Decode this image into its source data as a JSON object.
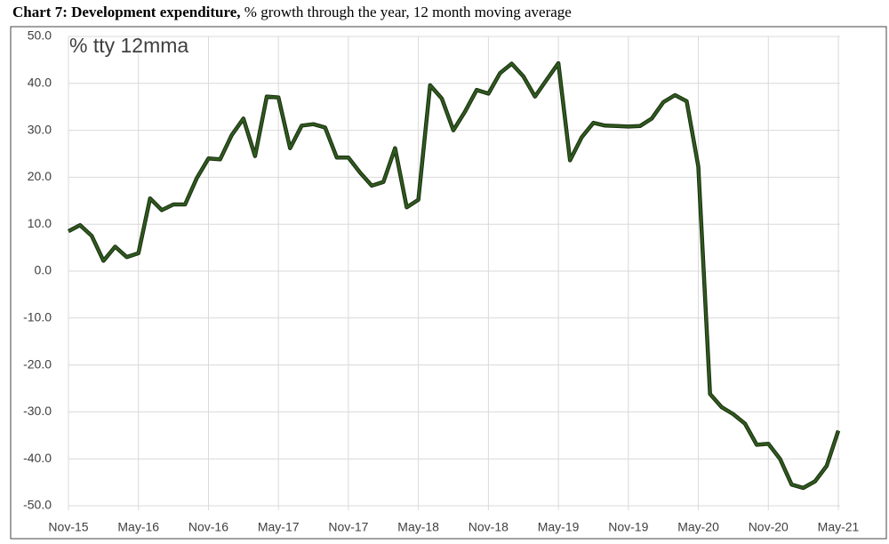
{
  "chart_data": {
    "type": "line",
    "title": "Chart 7: Development expenditure,",
    "subtitle": "% growth through the year, 12 month moving average",
    "annotation": "% tty 12mma",
    "categories": [
      "Nov-15",
      null,
      null,
      null,
      null,
      null,
      "May-16",
      null,
      null,
      null,
      null,
      null,
      "Nov-16",
      null,
      null,
      null,
      null,
      null,
      "May-17",
      null,
      null,
      null,
      null,
      null,
      "Nov-17",
      null,
      null,
      null,
      null,
      null,
      "May-18",
      null,
      null,
      null,
      null,
      null,
      "Nov-18",
      null,
      null,
      null,
      null,
      null,
      "May-19",
      null,
      null,
      null,
      null,
      null,
      "Nov-19",
      null,
      null,
      null,
      null,
      null,
      "May-20",
      null,
      null,
      null,
      null,
      null,
      "Nov-20",
      null,
      null,
      null,
      null,
      null,
      "May-21"
    ],
    "series": [
      {
        "name": "Development expenditure",
        "color": "#2f5a1e",
        "values": [
          8.5,
          9.8,
          7.5,
          2.2,
          5.2,
          3.0,
          3.8,
          15.5,
          13.0,
          14.2,
          14.2,
          19.8,
          24.0,
          23.8,
          29.0,
          32.5,
          24.5,
          37.2,
          37.0,
          26.2,
          31.0,
          31.3,
          30.6,
          24.2,
          24.2,
          21.0,
          18.2,
          19.0,
          26.2,
          13.6,
          15.2,
          39.6,
          36.8,
          30.0,
          34.0,
          38.6,
          37.8,
          42.2,
          44.2,
          41.5,
          37.2,
          40.8,
          44.3,
          23.6,
          28.5,
          31.6,
          31.0,
          30.9,
          30.8,
          30.9,
          32.5,
          36.0,
          37.5,
          36.2,
          22.3,
          -26.2,
          -29.0,
          -30.5,
          -32.5,
          -37.0,
          -36.8,
          -40.0,
          -45.5,
          -46.2,
          -44.8,
          -41.5,
          -34.0
        ]
      }
    ],
    "ylim": [
      -50,
      50
    ],
    "yticks": [
      {
        "value": 50,
        "label": "50.0"
      },
      {
        "value": 40,
        "label": "40.0"
      },
      {
        "value": 30,
        "label": "30.0"
      },
      {
        "value": 20,
        "label": "20.0"
      },
      {
        "value": 10,
        "label": "10.0"
      },
      {
        "value": 0,
        "label": "0.0"
      },
      {
        "value": -10,
        "label": "-10.0"
      },
      {
        "value": -20,
        "label": "-20.0"
      },
      {
        "value": -30,
        "label": "-30.0"
      },
      {
        "value": -40,
        "label": "-40.0"
      },
      {
        "value": -50,
        "label": "-50.0"
      }
    ],
    "grid": true
  }
}
